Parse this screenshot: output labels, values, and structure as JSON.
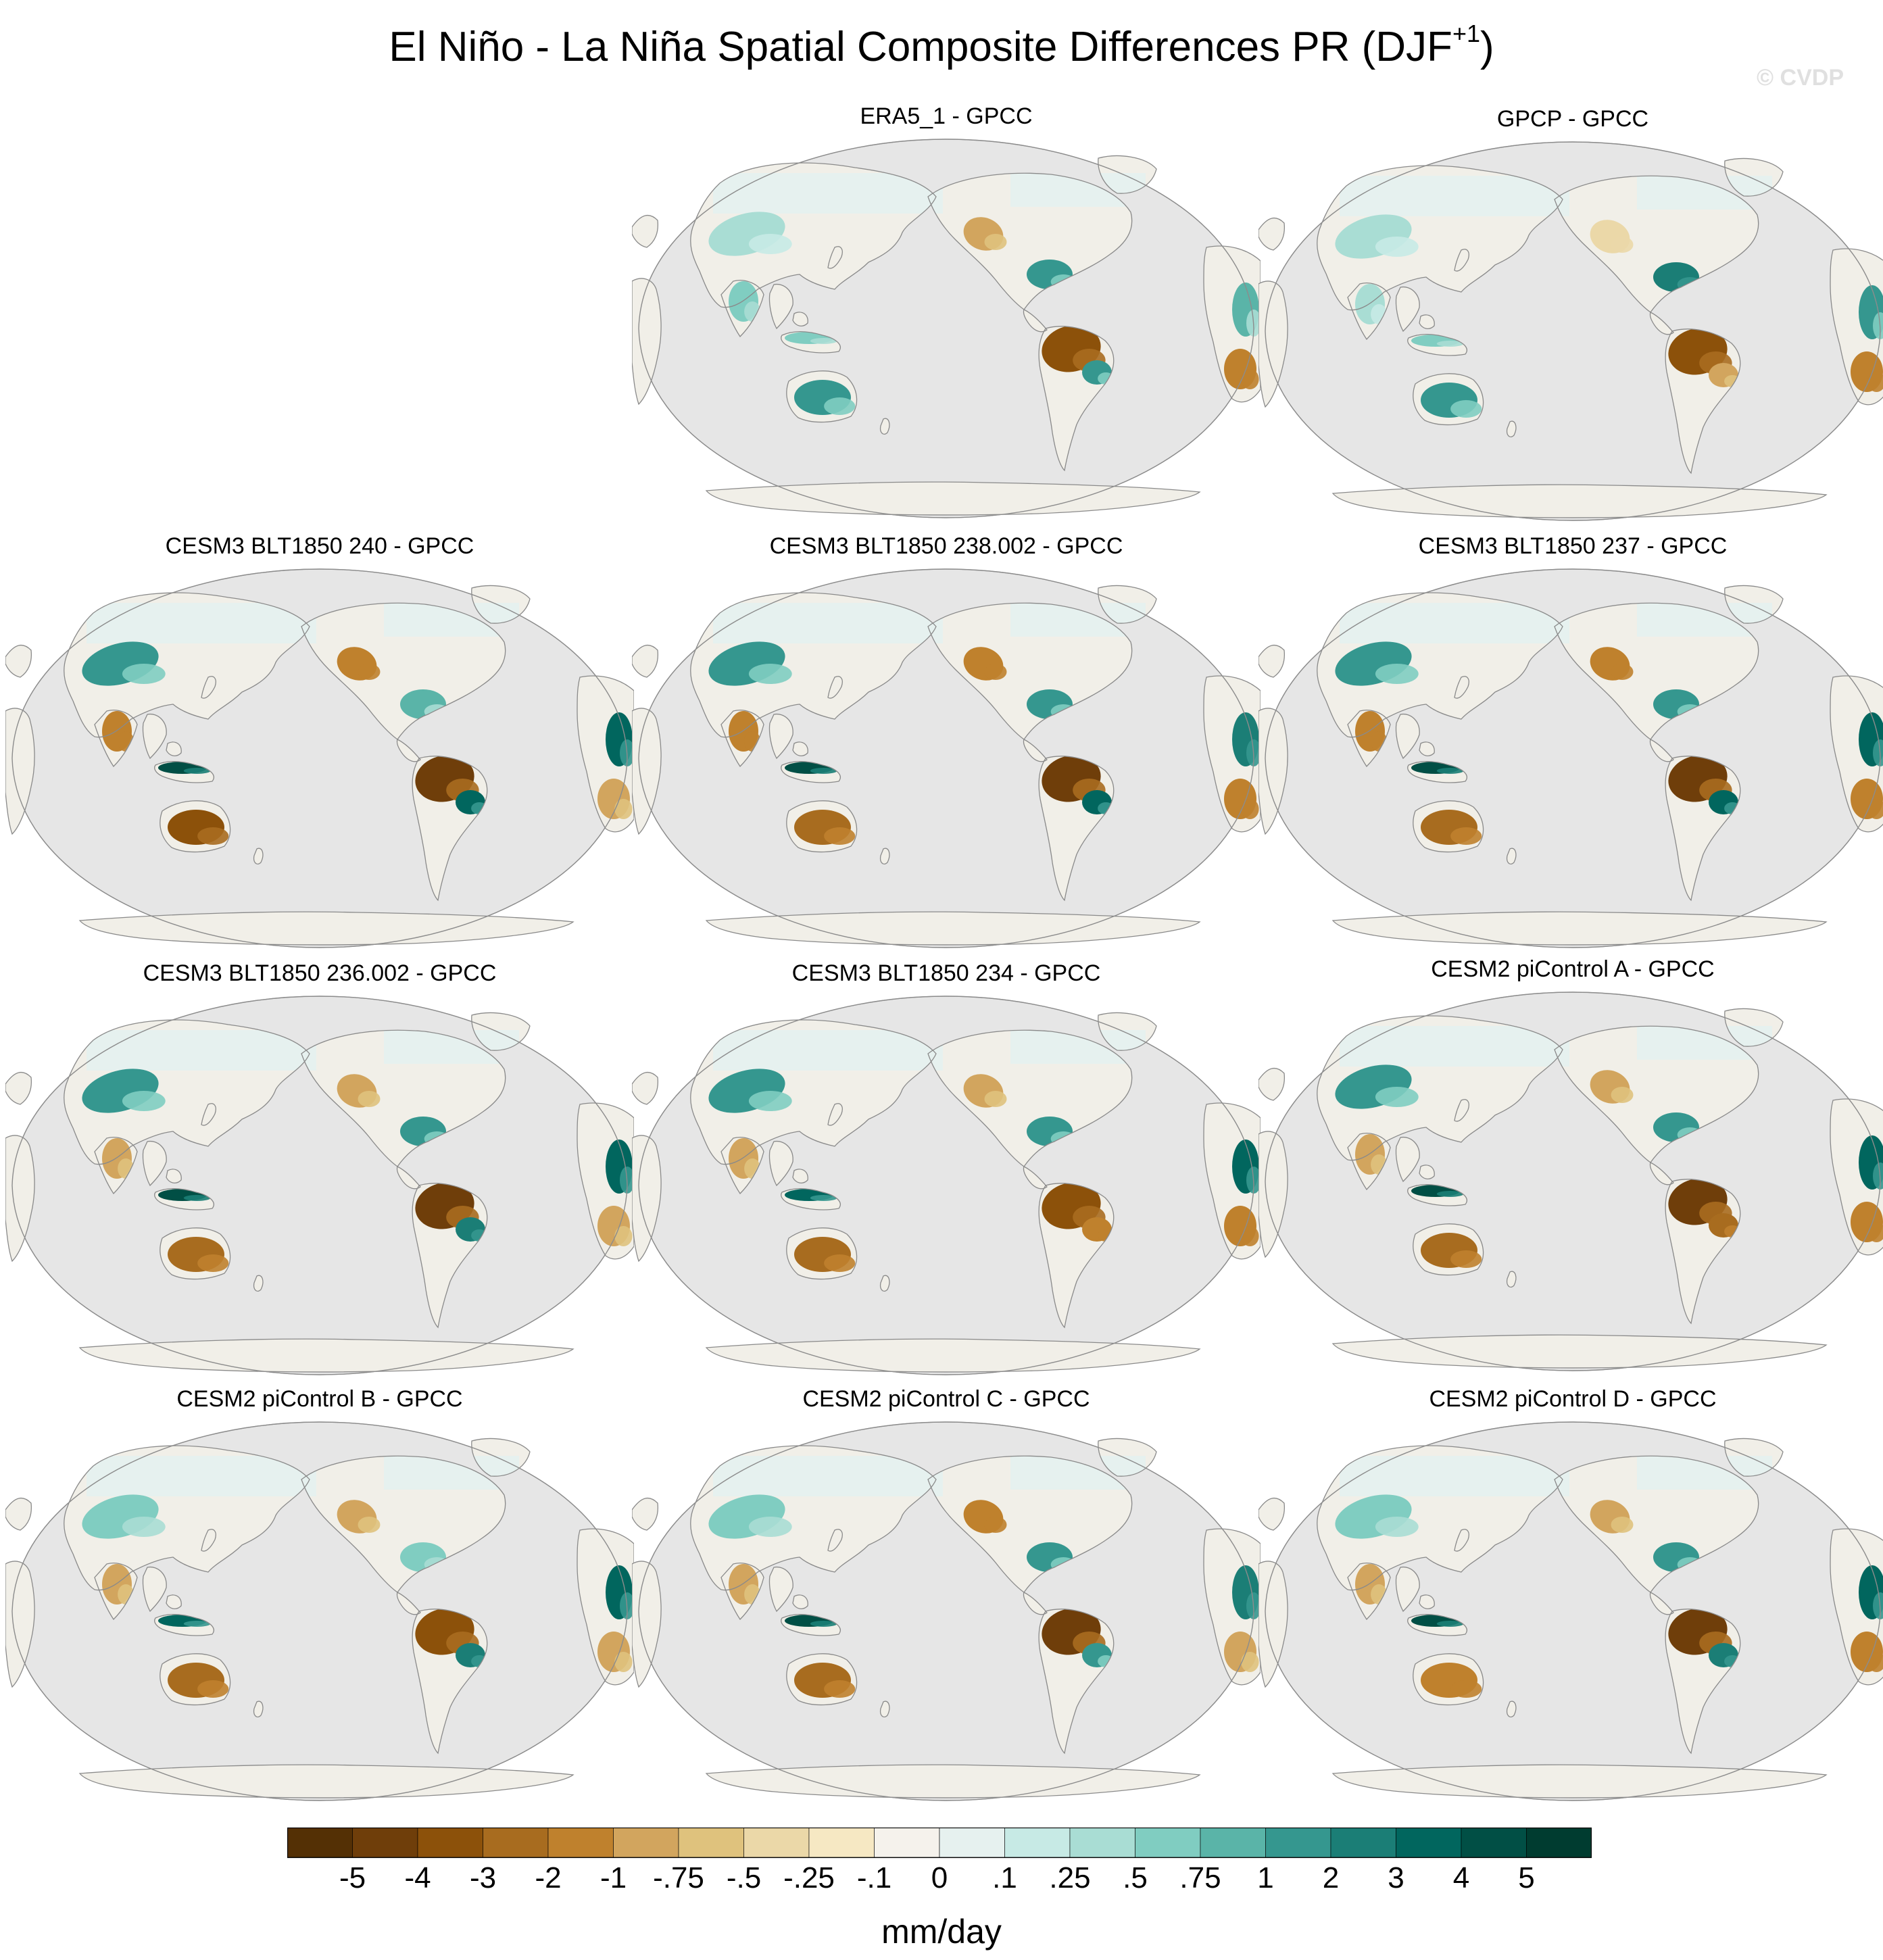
{
  "figure": {
    "title_main": "El Niño - La Niña Spatial Composite Differences PR (DJF",
    "title_sup": "+1",
    "title_close": ")",
    "watermark": "© CVDP"
  },
  "panels": [
    {
      "title": "ERA5_1 - GPCC",
      "anomalies": {
        "americas_south": -4,
        "americas_east_brazil": 1,
        "gulf_coast_us": 1,
        "nw_north_america": -1,
        "southern_africa": -2,
        "east_africa": 0.75,
        "australia": 1,
        "maritime_continent": 0.5,
        "central_asia": 0.25,
        "south_asia": 0.5
      }
    },
    {
      "title": "GPCP - GPCC",
      "anomalies": {
        "americas_south": -4,
        "americas_east_brazil": -1,
        "gulf_coast_us": 2,
        "nw_north_america": -0.5,
        "southern_africa": -2,
        "east_africa": 1,
        "australia": 1,
        "maritime_continent": 0.5,
        "central_asia": 0.25,
        "south_asia": 0.25
      }
    },
    {
      "title": "CESM3 BLT1850 240 - GPCC",
      "anomalies": {
        "americas_south": -5,
        "americas_east_brazil": 3,
        "gulf_coast_us": 0.75,
        "nw_north_america": -2,
        "southern_africa": -1,
        "east_africa": 3,
        "australia": -4,
        "maritime_continent": 4,
        "central_asia": 1,
        "south_asia": -2
      }
    },
    {
      "title": "CESM3 BLT1850 238.002 - GPCC",
      "anomalies": {
        "americas_south": -5,
        "americas_east_brazil": 3,
        "gulf_coast_us": 1,
        "nw_north_america": -2,
        "southern_africa": -2,
        "east_africa": 2,
        "australia": -3,
        "maritime_continent": 4,
        "central_asia": 1,
        "south_asia": -2
      }
    },
    {
      "title": "CESM3 BLT1850 237 - GPCC",
      "anomalies": {
        "americas_south": -5,
        "americas_east_brazil": 3,
        "gulf_coast_us": 1,
        "nw_north_america": -2,
        "southern_africa": -2,
        "east_africa": 3,
        "australia": -3,
        "maritime_continent": 4,
        "central_asia": 1,
        "south_asia": -2
      }
    },
    {
      "title": "CESM3 BLT1850 236.002 - GPCC",
      "anomalies": {
        "americas_south": -5,
        "americas_east_brazil": 2,
        "gulf_coast_us": 1,
        "nw_north_america": -1,
        "southern_africa": -1,
        "east_africa": 3,
        "australia": -3,
        "maritime_continent": 4,
        "central_asia": 1,
        "south_asia": -1
      }
    },
    {
      "title": "CESM3 BLT1850 234 - GPCC",
      "anomalies": {
        "americas_south": -4,
        "americas_east_brazil": -2,
        "gulf_coast_us": 1,
        "nw_north_america": -1,
        "southern_africa": -2,
        "east_africa": 3,
        "australia": -3,
        "maritime_continent": 3,
        "central_asia": 1,
        "south_asia": -1
      }
    },
    {
      "title": "CESM2 piControl A - GPCC",
      "anomalies": {
        "americas_south": -5,
        "americas_east_brazil": -3,
        "gulf_coast_us": 1,
        "nw_north_america": -1,
        "southern_africa": -2,
        "east_africa": 3,
        "australia": -3,
        "maritime_continent": 4,
        "central_asia": 1,
        "south_asia": -1
      }
    },
    {
      "title": "CESM2 piControl B - GPCC",
      "anomalies": {
        "americas_south": -4,
        "americas_east_brazil": 2,
        "gulf_coast_us": 0.5,
        "nw_north_america": -1,
        "southern_africa": -1,
        "east_africa": 3,
        "australia": -3,
        "maritime_continent": 3,
        "central_asia": 0.5,
        "south_asia": -1
      }
    },
    {
      "title": "CESM2 piControl C - GPCC",
      "anomalies": {
        "americas_south": -5,
        "americas_east_brazil": 1,
        "gulf_coast_us": 1,
        "nw_north_america": -2,
        "southern_africa": -1,
        "east_africa": 2,
        "australia": -3,
        "maritime_continent": 4,
        "central_asia": 0.5,
        "south_asia": -1
      }
    },
    {
      "title": "CESM2 piControl D - GPCC",
      "anomalies": {
        "americas_south": -5,
        "americas_east_brazil": 2,
        "gulf_coast_us": 1,
        "nw_north_america": -1,
        "southern_africa": -2,
        "east_africa": 3,
        "australia": -2,
        "maritime_continent": 4,
        "central_asia": 0.5,
        "south_asia": -1
      }
    }
  ],
  "colorbar": {
    "unit": "mm/day",
    "tick_labels": [
      "-5",
      "-4",
      "-3",
      "-2",
      "-1",
      "-.75",
      "-.5",
      "-.25",
      "-.1",
      "0",
      ".1",
      ".25",
      ".5",
      ".75",
      "1",
      "2",
      "3",
      "4",
      "5"
    ],
    "levels": [
      -5,
      -4,
      -3,
      -2,
      -1,
      -0.75,
      -0.5,
      -0.25,
      -0.1,
      0,
      0.1,
      0.25,
      0.5,
      0.75,
      1,
      2,
      3,
      4,
      5
    ],
    "colors": [
      "#543005",
      "#6f3e0a",
      "#8c510a",
      "#a86c1f",
      "#bf812d",
      "#d2a55e",
      "#dfc27d",
      "#ebd8a8",
      "#f6e8c3",
      "#f5f2ec",
      "#e6f1ef",
      "#c7eae5",
      "#a9ddd4",
      "#80cdc1",
      "#5ab4a8",
      "#35978f",
      "#1b7e76",
      "#01665e",
      "#014f45",
      "#003c30"
    ],
    "missing_color": "#e6e6e6",
    "land_outline_color": "#8a8a8a"
  }
}
